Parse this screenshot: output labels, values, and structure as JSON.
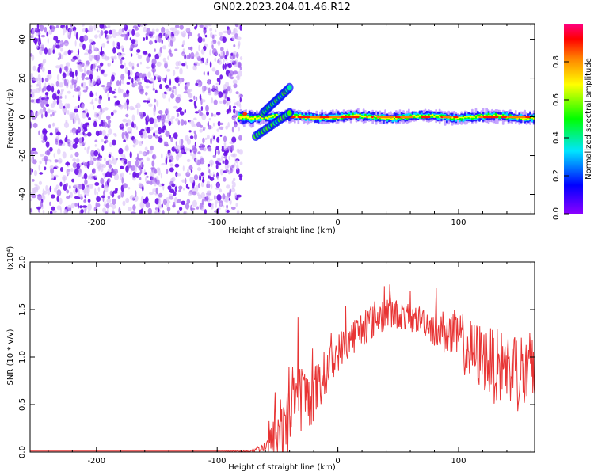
{
  "title": "GN02.2023.204.01.46.R12",
  "colorbar": {
    "label": "Normalized spectral amplitude",
    "ticks": [
      "0.0",
      "0.2",
      "0.4",
      "0.6",
      "0.8"
    ],
    "tick_values": [
      0.0,
      0.2,
      0.4,
      0.6,
      0.8
    ],
    "range": [
      0,
      1
    ]
  },
  "chart_data": [
    {
      "type": "heatmap",
      "title": "",
      "xlabel": "Height of straight line (km)",
      "ylabel": "Frequency (Hz)",
      "xlim": [
        -255,
        163
      ],
      "ylim": [
        -50,
        48
      ],
      "xticks": [
        -200,
        -100,
        0,
        100
      ],
      "yticks": [
        -40,
        -20,
        0,
        20,
        40
      ],
      "grid": false,
      "colormap": "rainbow",
      "features": [
        {
          "description": "scattered low-amplitude noise",
          "x_range": [
            -255,
            -80
          ],
          "y_range": [
            -50,
            48
          ],
          "amplitude": 0.15
        },
        {
          "description": "main frequency track near 0 Hz",
          "x_range": [
            -83,
            163
          ],
          "y": 0,
          "amplitude": 0.9
        },
        {
          "description": "upper tilted branch",
          "x": [
            -62,
            -40
          ],
          "y": [
            2,
            15
          ],
          "amplitude": 0.5
        },
        {
          "description": "lower tilted branch",
          "x": [
            -68,
            -40
          ],
          "y": [
            -10,
            2
          ],
          "amplitude": 0.5
        }
      ]
    },
    {
      "type": "line",
      "title": "",
      "xlabel": "Height of straight line (km)",
      "ylabel": "SNR (10 * v/v)",
      "yscale_label": "(x10⁴)",
      "xlim": [
        -255,
        163
      ],
      "ylim": [
        0,
        2.0
      ],
      "xticks": [
        -200,
        -100,
        0,
        100
      ],
      "yticks": [
        "0.0",
        "0.5",
        "1.0",
        "1.5",
        "2.0"
      ],
      "ytick_values": [
        0.0,
        0.5,
        1.0,
        1.5,
        2.0
      ],
      "grid": false,
      "series": [
        {
          "color": "#e83434",
          "x": [
            -255,
            -200,
            -150,
            -100,
            -75,
            -60,
            -55,
            -50,
            -45,
            -40,
            -35,
            -30,
            -25,
            -20,
            -15,
            -10,
            -5,
            0,
            10,
            20,
            30,
            40,
            50,
            60,
            70,
            80,
            90,
            100,
            110,
            120,
            130,
            140,
            150,
            160,
            163
          ],
          "y": [
            0.01,
            0.01,
            0.01,
            0.01,
            0.01,
            0.05,
            0.1,
            0.2,
            0.3,
            0.45,
            0.55,
            0.6,
            0.55,
            0.6,
            0.7,
            0.85,
            0.95,
            1.05,
            1.2,
            1.3,
            1.4,
            1.47,
            1.45,
            1.4,
            1.4,
            1.3,
            1.25,
            1.2,
            1.05,
            1.0,
            0.9,
            0.9,
            0.85,
            0.8,
            0.8
          ],
          "noise_amplitude": [
            0,
            0,
            0,
            0,
            0.01,
            0.05,
            0.2,
            0.4,
            0.5,
            0.5,
            0.4,
            0.4,
            0.3,
            0.3,
            0.3,
            0.25,
            0.2,
            0.2,
            0.2,
            0.2,
            0.2,
            0.2,
            0.15,
            0.15,
            0.15,
            0.2,
            0.25,
            0.3,
            0.35,
            0.35,
            0.4,
            0.4,
            0.45,
            0.5,
            0.5
          ]
        }
      ]
    }
  ]
}
